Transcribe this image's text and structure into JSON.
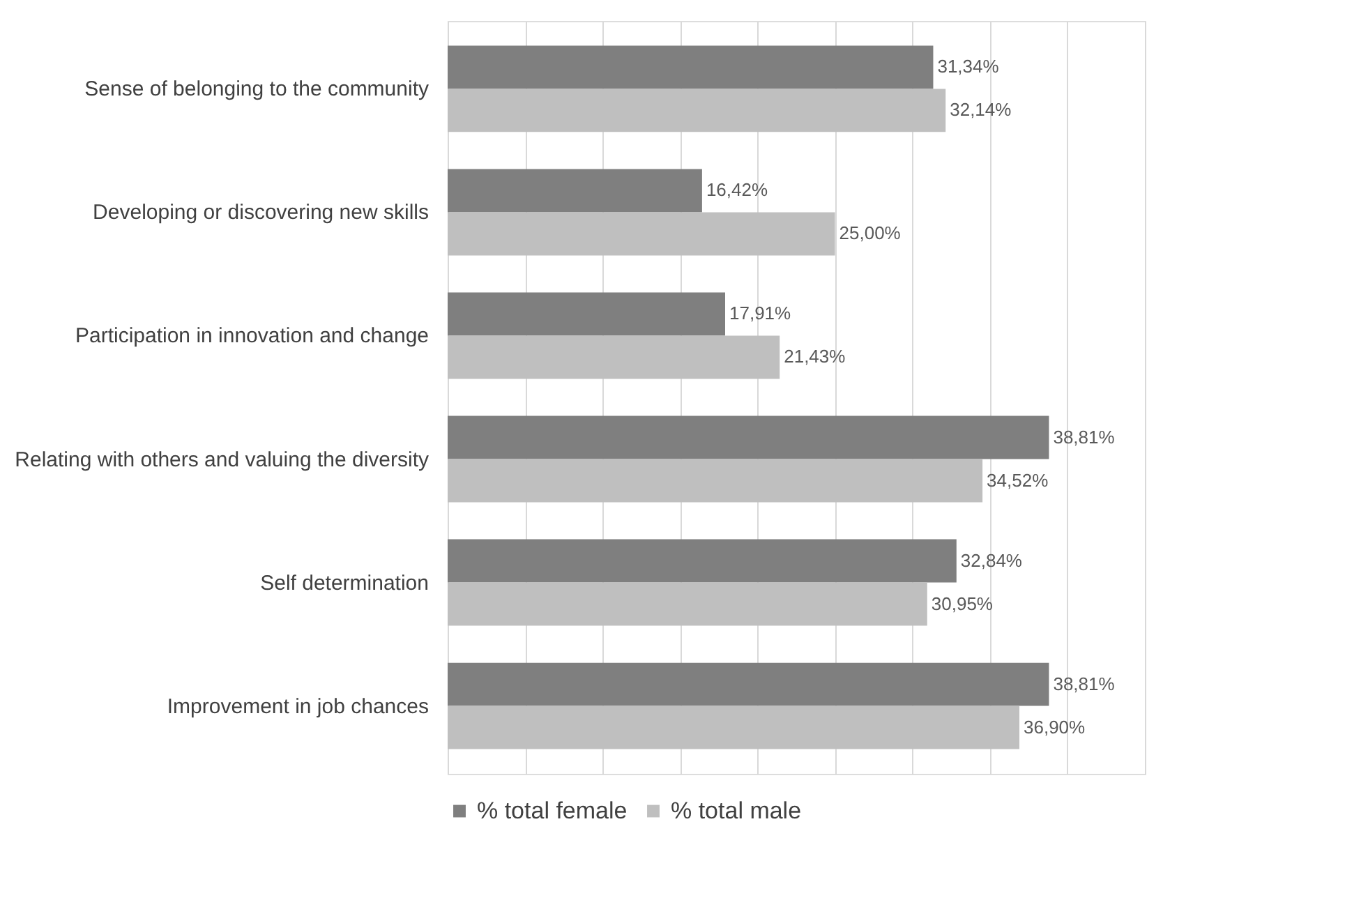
{
  "chart_data": {
    "type": "bar",
    "orientation": "horizontal",
    "categories": [
      "Sense of belonging to the community",
      "Developing or discovering new skills",
      "Participation in innovation and change",
      "Relating with others and valuing the diversity",
      "Self determination",
      "Improvement in job chances"
    ],
    "series": [
      {
        "name": "% total female",
        "color": "#7f7f7f",
        "values": [
          31.34,
          16.42,
          17.91,
          38.81,
          32.84,
          38.81
        ],
        "value_labels": [
          "31,34%",
          "16,42%",
          "17,91%",
          "38,81%",
          "32,84%",
          "38,81%"
        ]
      },
      {
        "name": "% total male",
        "color": "#bfbfbf",
        "values": [
          32.14,
          25.0,
          21.43,
          34.52,
          30.95,
          36.9
        ],
        "value_labels": [
          "32,14%",
          "25,00%",
          "21,43%",
          "34,52%",
          "30,95%",
          "36,90%"
        ]
      }
    ],
    "xlim": [
      0,
      45
    ],
    "xticks": [
      {
        "value": 0,
        "label": null
      },
      {
        "value": 5,
        "label": null
      },
      {
        "value": 10,
        "label": null
      },
      {
        "value": 15,
        "label": null
      },
      {
        "value": 20,
        "label": null
      },
      {
        "value": 25,
        "label": null
      },
      {
        "value": 30,
        "label": null
      },
      {
        "value": 35,
        "label": null
      },
      {
        "value": 40,
        "label": null
      },
      {
        "value": 45,
        "label": null
      }
    ],
    "grid": "x",
    "tick_labels": "y",
    "legend": "bottom"
  }
}
